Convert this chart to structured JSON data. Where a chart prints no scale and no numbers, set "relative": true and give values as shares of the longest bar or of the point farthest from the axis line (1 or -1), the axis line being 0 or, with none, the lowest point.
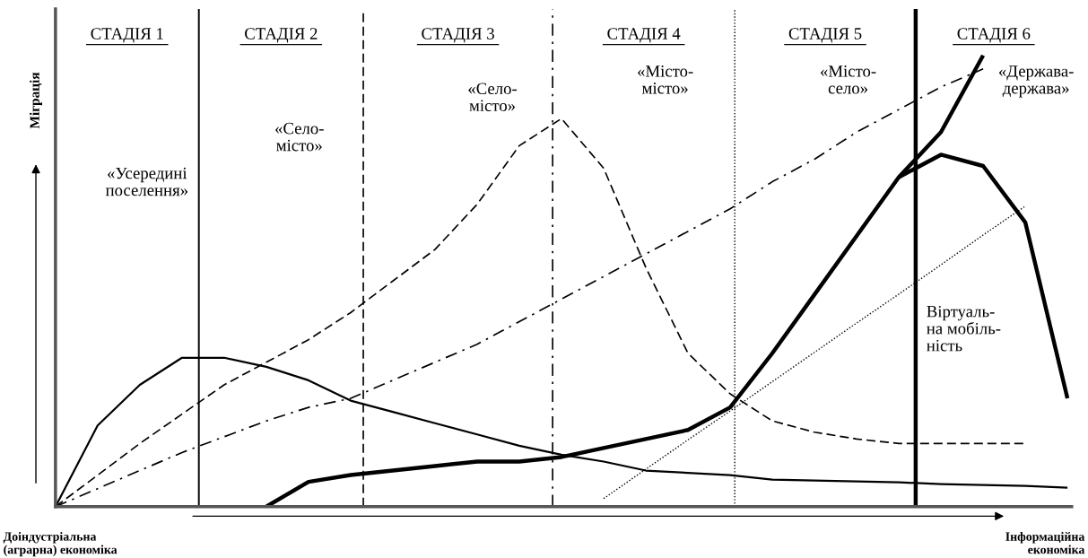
{
  "chart_data": {
    "type": "line",
    "relative": true,
    "legend": false,
    "tick_labels": false,
    "marker": "none",
    "ylabel": "Міграція",
    "categories": [
      null,
      null,
      null,
      null,
      null,
      null,
      null,
      null,
      null,
      null,
      null,
      null,
      null,
      null,
      null,
      null,
      null,
      null,
      null,
      null,
      null,
      null,
      null,
      null,
      null
    ],
    "series": [
      {
        "color": "#000000",
        "line_style": "solid",
        "values": [
          0,
          0.18,
          0.27,
          0.33,
          0.33,
          0.31,
          0.28,
          0.235,
          0.21,
          0.185,
          0.16,
          0.135,
          0.115,
          0.1,
          0.08,
          0.075,
          0.07,
          0.06,
          0.058,
          0.056,
          0.054,
          0.05,
          0.048,
          0.046,
          0.042
        ]
      },
      {
        "color": "#000000",
        "line_style": "dashed",
        "values": [
          0,
          0.07,
          0.14,
          0.205,
          0.27,
          0.32,
          0.37,
          0.43,
          0.5,
          0.57,
          0.67,
          0.8,
          0.86,
          0.75,
          0.53,
          0.34,
          0.25,
          0.19,
          0.165,
          0.15,
          0.14,
          0.14,
          0.14,
          0.14,
          null
        ]
      },
      {
        "color": "#000000",
        "line_style": "dashdot",
        "values": [
          0,
          0.04,
          0.08,
          0.12,
          0.155,
          0.19,
          0.22,
          0.24,
          0.28,
          0.32,
          0.36,
          0.41,
          0.46,
          0.51,
          0.56,
          0.61,
          0.66,
          0.72,
          0.77,
          0.83,
          0.88,
          0.93,
          0.97,
          null,
          null
        ]
      },
      {
        "color": "#000000",
        "line_style": "solid",
        "values": [
          null,
          null,
          null,
          null,
          null,
          0,
          0.055,
          0.07,
          0.08,
          0.09,
          0.1,
          0.1,
          0.11,
          0.13,
          0.15,
          0.17,
          0.22,
          0.34,
          0.47,
          0.6,
          0.73,
          0.83,
          1.0,
          null,
          null
        ]
      },
      {
        "color": "#000000",
        "line_style": "solid",
        "values": [
          null,
          null,
          null,
          null,
          null,
          null,
          null,
          null,
          null,
          null,
          null,
          null,
          null,
          null,
          null,
          null,
          null,
          null,
          null,
          null,
          0.73,
          0.78,
          0.755,
          0.63,
          0.24
        ]
      },
      {
        "color": "#000000",
        "line_style": "dotted",
        "values": [
          null,
          null,
          null,
          null,
          null,
          null,
          null,
          null,
          null,
          null,
          null,
          null,
          null,
          0.018,
          0.083,
          0.148,
          0.212,
          0.277,
          0.342,
          0.407,
          0.471,
          0.536,
          0.602,
          0.666,
          null
        ]
      }
    ],
    "annotations": [
      "СТАДІЯ 1",
      "СТАДІЯ 2",
      "СТАДІЯ 3",
      "СТАДІЯ 4",
      "СТАДІЯ 5",
      "СТАДІЯ 6",
      "«Усередині\nпоселення»",
      "«Село-\nмісто»",
      "«Село-\nмісто»",
      "«Місто-\nмісто»",
      "«Місто-\nсело»",
      "«Держава-\nдержава»",
      "Віртуаль-\nна мобіль-\nність",
      "Доіндустріальна\n(аграрна) економіка",
      "Інформаційна\nекономіка"
    ]
  }
}
